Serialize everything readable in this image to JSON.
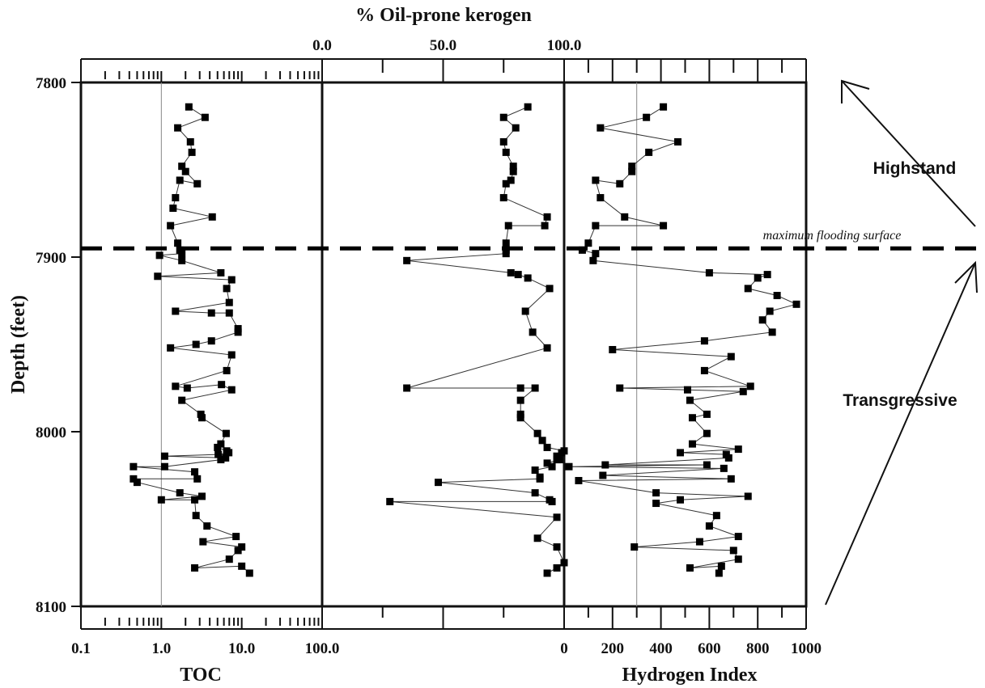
{
  "chart_data": {
    "type": "scatter",
    "y_axis": {
      "label": "Depth (feet)",
      "range": [
        7800,
        8100
      ],
      "ticks": [
        "7800",
        "7900",
        "8000",
        "8100"
      ]
    },
    "panels": [
      {
        "name": "TOC",
        "xlabel": "TOC",
        "scale": "log",
        "xlim": [
          0.1,
          100
        ],
        "tick_labels": [
          "0.1",
          "1.0",
          "10.0",
          "100.0"
        ],
        "reference_line": 1.0,
        "points": [
          [
            2.2,
            7814
          ],
          [
            3.5,
            7820
          ],
          [
            1.6,
            7826
          ],
          [
            2.3,
            7834
          ],
          [
            2.4,
            7840
          ],
          [
            1.8,
            7848
          ],
          [
            2.0,
            7851
          ],
          [
            2.8,
            7858
          ],
          [
            1.7,
            7856
          ],
          [
            1.5,
            7866
          ],
          [
            1.4,
            7872
          ],
          [
            4.3,
            7877
          ],
          [
            1.3,
            7882
          ],
          [
            1.6,
            7892
          ],
          [
            1.7,
            7896
          ],
          [
            1.8,
            7898
          ],
          [
            0.95,
            7899
          ],
          [
            1.8,
            7902
          ],
          [
            5.5,
            7909
          ],
          [
            0.9,
            7911
          ],
          [
            7.5,
            7913
          ],
          [
            6.5,
            7918
          ],
          [
            7.0,
            7926
          ],
          [
            1.5,
            7931
          ],
          [
            4.2,
            7932
          ],
          [
            7.0,
            7932
          ],
          [
            9.0,
            7941
          ],
          [
            9.0,
            7943
          ],
          [
            4.2,
            7948
          ],
          [
            2.7,
            7950
          ],
          [
            1.3,
            7952
          ],
          [
            7.5,
            7956
          ],
          [
            6.5,
            7965
          ],
          [
            1.5,
            7974
          ],
          [
            2.1,
            7975
          ],
          [
            5.6,
            7973
          ],
          [
            7.5,
            7976
          ],
          [
            1.8,
            7982
          ],
          [
            3.1,
            7990
          ],
          [
            3.2,
            7992
          ],
          [
            6.4,
            8001
          ],
          [
            5.5,
            8007
          ],
          [
            5.0,
            8009
          ],
          [
            6.5,
            8011
          ],
          [
            6.9,
            8012
          ],
          [
            5.1,
            8013
          ],
          [
            1.1,
            8014
          ],
          [
            6.3,
            8015
          ],
          [
            5.5,
            8016
          ],
          [
            1.1,
            8020
          ],
          [
            0.45,
            8020
          ],
          [
            2.6,
            8023
          ],
          [
            2.8,
            8027
          ],
          [
            0.45,
            8027
          ],
          [
            0.5,
            8029
          ],
          [
            1.7,
            8035
          ],
          [
            3.2,
            8037
          ],
          [
            1.0,
            8039
          ],
          [
            2.6,
            8039
          ],
          [
            2.7,
            8048
          ],
          [
            3.7,
            8054
          ],
          [
            8.5,
            8060
          ],
          [
            3.3,
            8063
          ],
          [
            10.0,
            8066
          ],
          [
            9.0,
            8068
          ],
          [
            7.0,
            8073
          ],
          [
            2.6,
            8078
          ],
          [
            10.0,
            8077
          ],
          [
            12.5,
            8081
          ]
        ]
      },
      {
        "name": "% Oil-prone kerogen",
        "xlabel": "% Oil-prone kerogen",
        "scale": "linear",
        "xlim": [
          0,
          100
        ],
        "tick_labels": [
          "0.0",
          "50.0",
          "100.0"
        ],
        "points": [
          [
            85,
            7814
          ],
          [
            75,
            7820
          ],
          [
            80,
            7826
          ],
          [
            75,
            7834
          ],
          [
            76,
            7840
          ],
          [
            79,
            7848
          ],
          [
            79,
            7851
          ],
          [
            78,
            7856
          ],
          [
            76,
            7858
          ],
          [
            75,
            7866
          ],
          [
            93,
            7877
          ],
          [
            92,
            7882
          ],
          [
            77,
            7882
          ],
          [
            76,
            7892
          ],
          [
            76,
            7896
          ],
          [
            76,
            7898
          ],
          [
            35,
            7902
          ],
          [
            78,
            7909
          ],
          [
            81,
            7910
          ],
          [
            85,
            7912
          ],
          [
            94,
            7918
          ],
          [
            84,
            7931
          ],
          [
            87,
            7943
          ],
          [
            93,
            7952
          ],
          [
            35,
            7975
          ],
          [
            82,
            7975
          ],
          [
            88,
            7975
          ],
          [
            82,
            7982
          ],
          [
            82,
            7990
          ],
          [
            82,
            7992
          ],
          [
            89,
            8001
          ],
          [
            91,
            8005
          ],
          [
            93,
            8009
          ],
          [
            100,
            8011
          ],
          [
            99,
            8012
          ],
          [
            97,
            8014
          ],
          [
            97,
            8016
          ],
          [
            98,
            8016
          ],
          [
            93,
            8018
          ],
          [
            95,
            8020
          ],
          [
            88,
            8022
          ],
          [
            90,
            8026
          ],
          [
            90,
            8027
          ],
          [
            48,
            8029
          ],
          [
            88,
            8035
          ],
          [
            94,
            8039
          ],
          [
            95,
            8040
          ],
          [
            28,
            8040
          ],
          [
            97,
            8049
          ],
          [
            89,
            8061
          ],
          [
            97,
            8066
          ],
          [
            100,
            8075
          ],
          [
            97,
            8078
          ],
          [
            93,
            8081
          ]
        ]
      },
      {
        "name": "Hydrogen Index",
        "xlabel": "Hydrogen Index",
        "scale": "linear",
        "xlim": [
          0,
          1000
        ],
        "tick_labels": [
          "0",
          "200",
          "400",
          "600",
          "800",
          "1000"
        ],
        "reference_line": 300,
        "points": [
          [
            410,
            7814
          ],
          [
            340,
            7820
          ],
          [
            150,
            7826
          ],
          [
            470,
            7834
          ],
          [
            350,
            7840
          ],
          [
            280,
            7848
          ],
          [
            280,
            7851
          ],
          [
            230,
            7858
          ],
          [
            130,
            7856
          ],
          [
            150,
            7866
          ],
          [
            250,
            7877
          ],
          [
            410,
            7882
          ],
          [
            130,
            7882
          ],
          [
            100,
            7892
          ],
          [
            75,
            7896
          ],
          [
            130,
            7898
          ],
          [
            120,
            7902
          ],
          [
            600,
            7909
          ],
          [
            840,
            7910
          ],
          [
            800,
            7912
          ],
          [
            760,
            7918
          ],
          [
            880,
            7922
          ],
          [
            960,
            7927
          ],
          [
            850,
            7931
          ],
          [
            820,
            7936
          ],
          [
            860,
            7943
          ],
          [
            580,
            7948
          ],
          [
            200,
            7953
          ],
          [
            690,
            7957
          ],
          [
            580,
            7965
          ],
          [
            770,
            7974
          ],
          [
            230,
            7975
          ],
          [
            510,
            7976
          ],
          [
            740,
            7977
          ],
          [
            520,
            7982
          ],
          [
            590,
            7990
          ],
          [
            530,
            7992
          ],
          [
            590,
            8001
          ],
          [
            530,
            8007
          ],
          [
            720,
            8010
          ],
          [
            480,
            8012
          ],
          [
            670,
            8013
          ],
          [
            680,
            8015
          ],
          [
            170,
            8019
          ],
          [
            590,
            8019
          ],
          [
            20,
            8020
          ],
          [
            660,
            8021
          ],
          [
            160,
            8025
          ],
          [
            690,
            8027
          ],
          [
            60,
            8028
          ],
          [
            380,
            8035
          ],
          [
            760,
            8037
          ],
          [
            480,
            8039
          ],
          [
            380,
            8041
          ],
          [
            630,
            8048
          ],
          [
            600,
            8054
          ],
          [
            720,
            8060
          ],
          [
            560,
            8063
          ],
          [
            290,
            8066
          ],
          [
            700,
            8068
          ],
          [
            720,
            8073
          ],
          [
            520,
            8078
          ],
          [
            650,
            8077
          ],
          [
            640,
            8081
          ]
        ]
      }
    ],
    "annotations": {
      "highstand": "Highstand",
      "transgressive": "Transgressive",
      "mfs": "maximum   flooding surface",
      "mfs_depth": 7895
    }
  }
}
